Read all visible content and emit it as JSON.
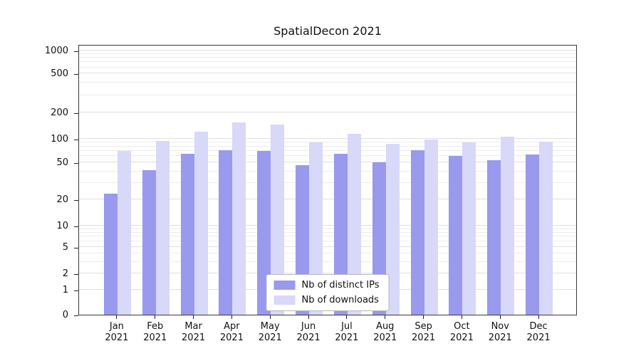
{
  "chart_data": {
    "type": "bar",
    "title": "SpatialDecon 2021",
    "categories": [
      "Jan",
      "Feb",
      "Mar",
      "Apr",
      "May",
      "Jun",
      "Jul",
      "Aug",
      "Sep",
      "Oct",
      "Nov",
      "Dec"
    ],
    "year": "2021",
    "series": [
      {
        "name": "Nb of distinct IPs",
        "color": "#9999ee",
        "values": [
          23,
          41,
          65,
          72,
          70,
          47,
          65,
          50,
          72,
          60,
          53,
          63
        ]
      },
      {
        "name": "Nb of downloads",
        "color": "#d8d8f8",
        "values": [
          70,
          93,
          120,
          155,
          145,
          90,
          115,
          87,
          97,
          90,
          105,
          92
        ]
      }
    ],
    "y_ticks": [
      0,
      1,
      2,
      5,
      10,
      20,
      50,
      100,
      200,
      500,
      1000
    ],
    "y_minor_gridlines": [
      3,
      4,
      6,
      7,
      8,
      9,
      30,
      40,
      60,
      70,
      80,
      90,
      300,
      400,
      600,
      700,
      800,
      900
    ],
    "y_scale": "log-like",
    "grid": "horizontal",
    "legend_position": "bottom-center",
    "colors": {
      "major_grid": "#e0e0e0",
      "minor_grid": "#ededed",
      "axis": "#3a3a3a",
      "text": "#111111"
    }
  }
}
